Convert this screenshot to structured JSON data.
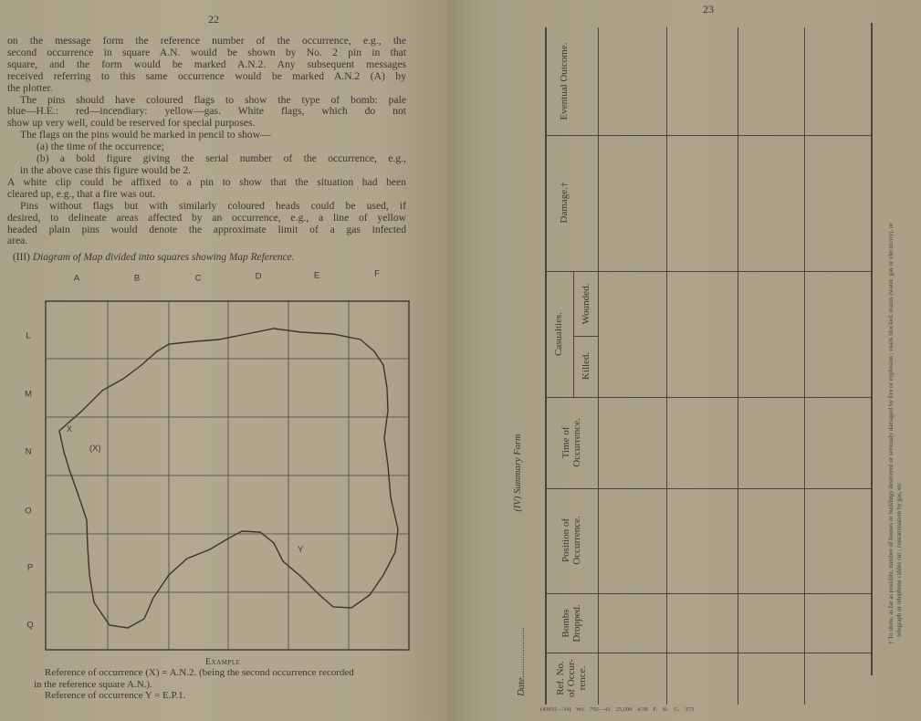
{
  "left_page": {
    "page_number": "22",
    "lines": [
      "on the message form the reference number of the occurrence, e.g., the",
      "second occurrence in square A.N. would be shown by No. 2 pin in that",
      "square, and the form would be marked A.N.2.  Any subsequent messages",
      "received referring to this same occurrence would be marked A.N.2 (A) by",
      "the plotter.",
      "The pins should have coloured flags to show the type of bomb: pale",
      "blue—H.E.: red—incendiary: yellow—gas.  White flags, which do not",
      "show up very well, could be reserved for special purposes.",
      "The flags on the pins would be marked in pencil to show—",
      "(a) the time of the occurrence;",
      "(b) a bold figure giving the serial number of the occurrence, e.g.,",
      "in the above case this figure would be 2.",
      "A white clip could be affixed to a pin to show that the situation had been",
      "cleared up, e.g., that a fire was out.",
      "Pins without flags but with similarly coloured heads could be used, if",
      "desired, to delineate areas affected by an occurrence, e.g., a line of yellow",
      "headed plain pins would denote the approximate limit of a gas infected",
      "area."
    ],
    "diagram_caption_prefix": "(III)",
    "diagram_caption": "Diagram of Map divided into squares showing Map Reference.",
    "map": {
      "columns": [
        "A",
        "B",
        "C",
        "D",
        "E",
        "F"
      ],
      "rows": [
        "L",
        "M",
        "N",
        "O",
        "P",
        "Q"
      ],
      "marks": {
        "x_point": "X",
        "x_ref": "(X)",
        "y_point": "Y"
      }
    },
    "example": {
      "heading": "Example",
      "line1": "Reference of occurrence (X) = A.N.2. (being the second occurrence recorded",
      "line2": "in the reference square A.N.).",
      "line3": "Reference of occurrence Y = E.P.1."
    }
  },
  "right_page": {
    "page_number": "23",
    "form_title": "(IV)  Summary Form",
    "date_label": "Date.....................",
    "headers": {
      "ref": [
        "Ref. No.",
        "of Occur-",
        "rence."
      ],
      "bombs": [
        "Bombs",
        "Dropped."
      ],
      "position": [
        "Position of",
        "Occurrence."
      ],
      "time": [
        "Time of",
        "Occurrence."
      ],
      "casualties": "Casualties.",
      "killed": "Killed.",
      "wounded": "Wounded.",
      "damage": "Damage.†",
      "outcome": "Eventual Outcome."
    },
    "footnote_line1": "† To show, as far as possible, number of houses or buildings destroyed or seriously damaged by fire or explosion ; roads blocked, mains (water, gas or electricity), or",
    "footnote_line2": "telegraph or telephone cables cut ; contamination by gas, etc.",
    "printer_line": "(43831—34)  Wt. 792—41  25,000  4/38  F. St.  G. 373"
  }
}
